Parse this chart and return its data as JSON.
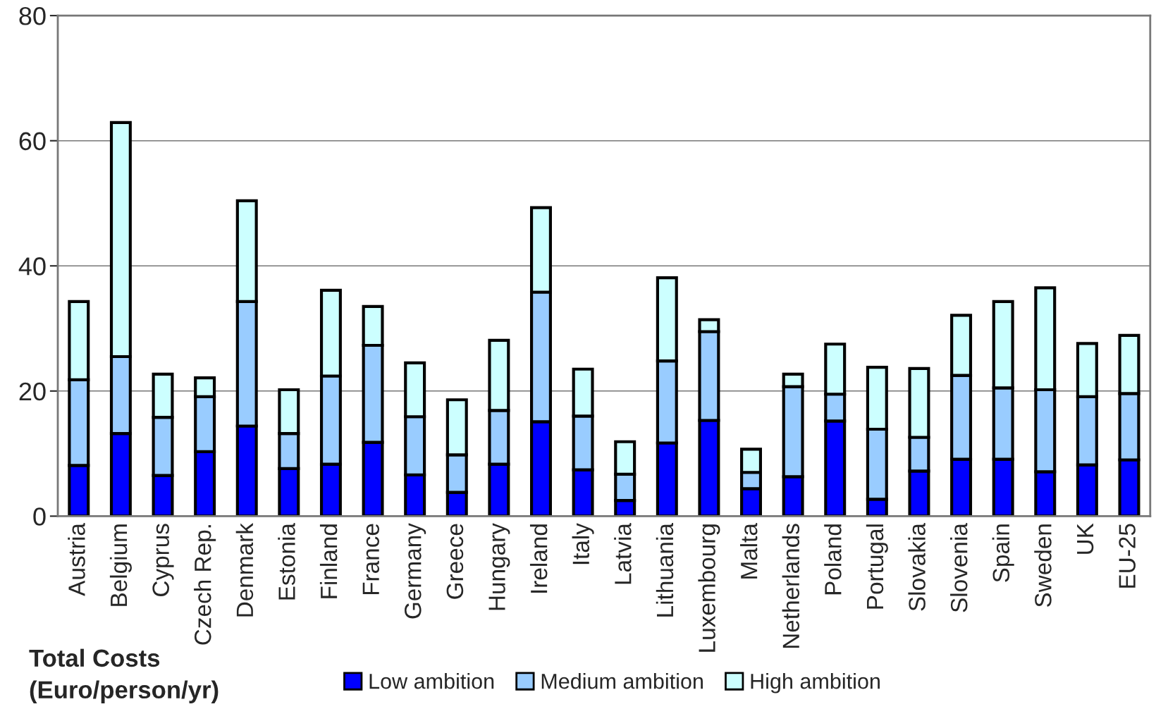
{
  "chart_data": {
    "type": "bar",
    "stacked": true,
    "ylabel": "Total Costs\n(Euro/person/yr)",
    "categories": [
      "Austria",
      "Belgium",
      "Cyprus",
      "Czech Rep.",
      "Denmark",
      "Estonia",
      "Finland",
      "France",
      "Germany",
      "Greece",
      "Hungary",
      "Ireland",
      "Italy",
      "Latvia",
      "Lithuania",
      "Luxembourg",
      "Malta",
      "Netherlands",
      "Poland",
      "Portugal",
      "Slovakia",
      "Slovenia",
      "Spain",
      "Sweden",
      "UK",
      "EU-25"
    ],
    "series": [
      {
        "name": "Low ambition",
        "color": "#0000ff",
        "values": [
          8.1,
          13.2,
          6.5,
          10.3,
          14.4,
          7.6,
          8.3,
          11.8,
          6.6,
          3.8,
          8.3,
          15.1,
          7.4,
          2.5,
          11.7,
          15.3,
          4.4,
          6.3,
          15.2,
          2.7,
          7.2,
          9.1,
          9.1,
          7.1,
          8.2,
          9.0
        ]
      },
      {
        "name": "Medium ambition",
        "color": "#99ccff",
        "values": [
          13.7,
          12.3,
          9.3,
          8.8,
          19.9,
          5.6,
          14.1,
          15.5,
          9.3,
          6.0,
          8.6,
          20.7,
          8.6,
          4.2,
          13.1,
          14.2,
          2.6,
          14.4,
          4.3,
          11.2,
          5.4,
          13.4,
          11.4,
          13.1,
          10.9,
          10.6
        ]
      },
      {
        "name": "High ambition",
        "color": "#ccffff",
        "values": [
          12.5,
          37.4,
          6.9,
          3.0,
          16.1,
          7.0,
          13.7,
          6.2,
          8.6,
          8.8,
          11.2,
          13.5,
          7.5,
          5.2,
          13.3,
          1.9,
          3.7,
          2.0,
          8.0,
          9.9,
          11.0,
          9.6,
          13.8,
          16.3,
          8.5,
          9.3
        ]
      }
    ],
    "ylim": [
      0,
      80
    ],
    "yticks": [
      0,
      20,
      40,
      60,
      80
    ],
    "grid": "y",
    "legend": "bottom"
  }
}
